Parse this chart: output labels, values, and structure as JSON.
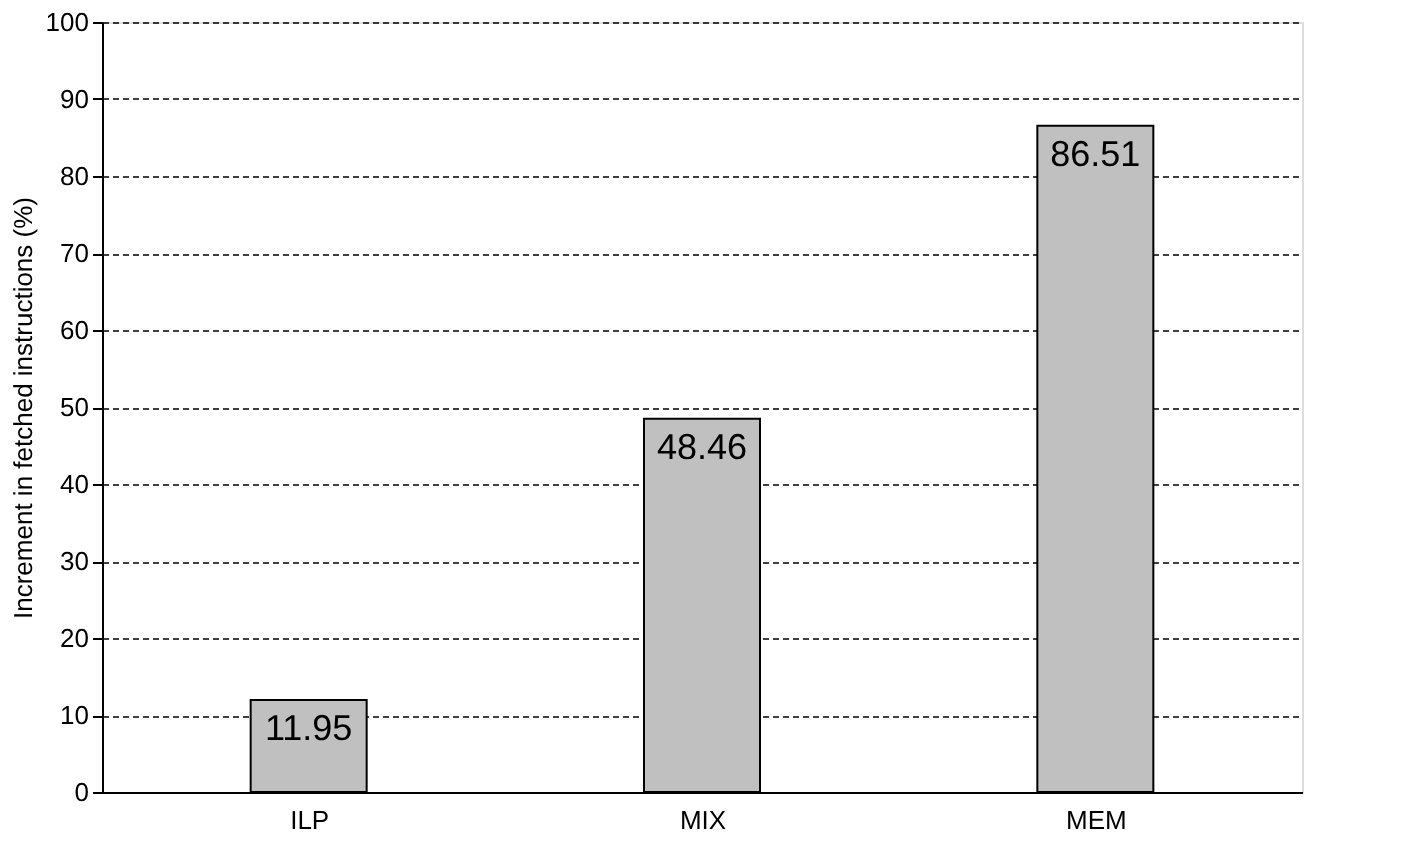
{
  "chart_data": {
    "type": "bar",
    "ylabel": "Increment in fetched instructions (%)",
    "categories": [
      "ILP",
      "MIX",
      "MEM"
    ],
    "series": [
      {
        "color": "#c0c0c0",
        "values": [
          11.95,
          48.46,
          86.51
        ]
      }
    ],
    "ylim": [
      0,
      100
    ],
    "yticks": [
      0,
      10,
      20,
      30,
      40,
      50,
      60,
      70,
      80,
      90,
      100
    ],
    "grid": "y",
    "data_labels": true
  }
}
